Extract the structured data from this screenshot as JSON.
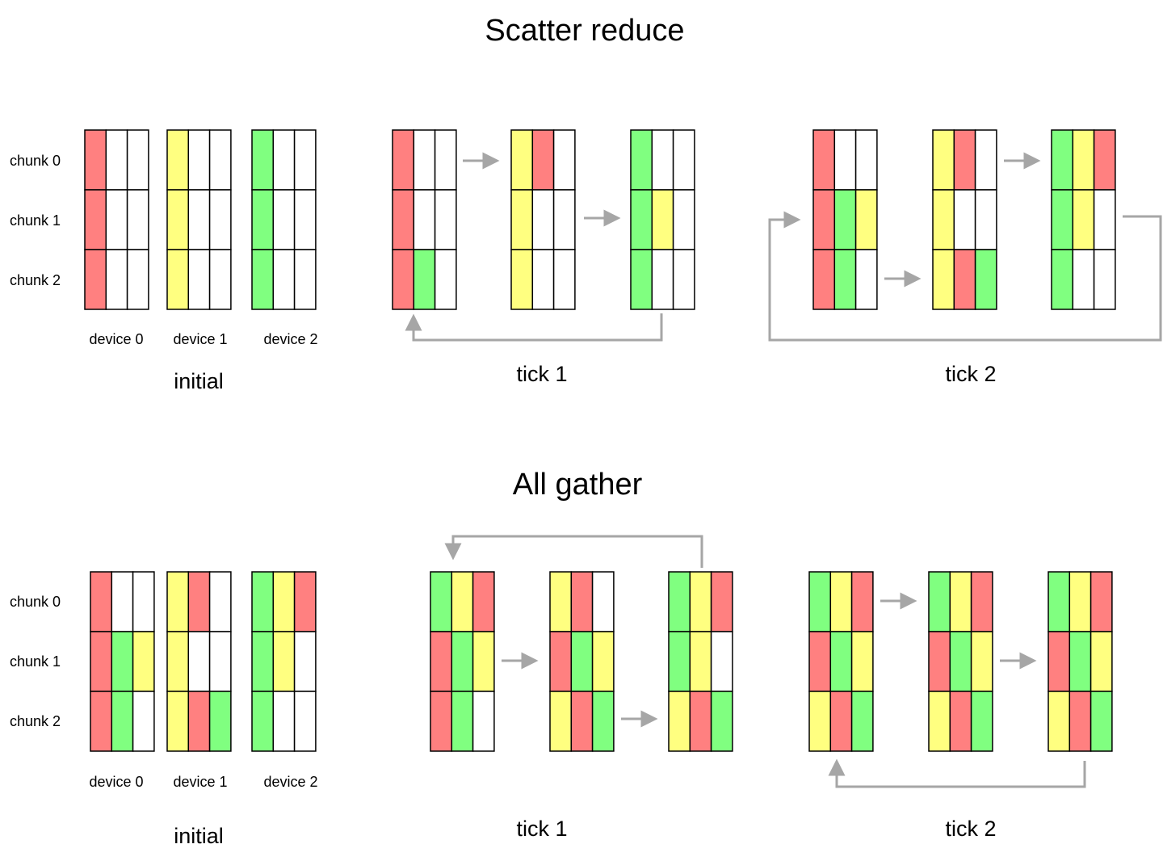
{
  "colors": {
    "R": "#ff8080",
    "Y": "#ffff80",
    "G": "#80ff80",
    "W": "#ffffff",
    "stroke": "#000000",
    "arrow": "#a6a6a6"
  },
  "chunk_labels": [
    "chunk 0",
    "chunk 1",
    "chunk 2"
  ],
  "sections": [
    {
      "title": "Scatter reduce",
      "device_labels": [
        "device 0",
        "device 1",
        "device 2"
      ],
      "stages": [
        {
          "caption": "initial",
          "devices": [
            [
              [
                "R",
                "W",
                "W"
              ],
              [
                "R",
                "W",
                "W"
              ],
              [
                "R",
                "W",
                "W"
              ]
            ],
            [
              [
                "Y",
                "W",
                "W"
              ],
              [
                "Y",
                "W",
                "W"
              ],
              [
                "Y",
                "W",
                "W"
              ]
            ],
            [
              [
                "G",
                "W",
                "W"
              ],
              [
                "G",
                "W",
                "W"
              ],
              [
                "G",
                "W",
                "W"
              ]
            ]
          ]
        },
        {
          "caption": "tick 1",
          "devices": [
            [
              [
                "R",
                "W",
                "W"
              ],
              [
                "R",
                "W",
                "W"
              ],
              [
                "R",
                "G",
                "W"
              ]
            ],
            [
              [
                "Y",
                "R",
                "W"
              ],
              [
                "Y",
                "W",
                "W"
              ],
              [
                "Y",
                "W",
                "W"
              ]
            ],
            [
              [
                "G",
                "W",
                "W"
              ],
              [
                "G",
                "Y",
                "W"
              ],
              [
                "G",
                "W",
                "W"
              ]
            ]
          ]
        },
        {
          "caption": "tick 2",
          "devices": [
            [
              [
                "R",
                "W",
                "W"
              ],
              [
                "R",
                "G",
                "Y"
              ],
              [
                "R",
                "G",
                "W"
              ]
            ],
            [
              [
                "Y",
                "R",
                "W"
              ],
              [
                "Y",
                "W",
                "W"
              ],
              [
                "Y",
                "R",
                "G"
              ]
            ],
            [
              [
                "G",
                "Y",
                "R"
              ],
              [
                "G",
                "Y",
                "W"
              ],
              [
                "G",
                "W",
                "W"
              ]
            ]
          ]
        }
      ]
    },
    {
      "title": "All gather",
      "device_labels": [
        "device 0",
        "device 1",
        "device 2"
      ],
      "stages": [
        {
          "caption": "initial",
          "devices": [
            [
              [
                "R",
                "W",
                "W"
              ],
              [
                "R",
                "G",
                "Y"
              ],
              [
                "R",
                "G",
                "W"
              ]
            ],
            [
              [
                "Y",
                "R",
                "W"
              ],
              [
                "Y",
                "W",
                "W"
              ],
              [
                "Y",
                "R",
                "G"
              ]
            ],
            [
              [
                "G",
                "Y",
                "R"
              ],
              [
                "G",
                "Y",
                "W"
              ],
              [
                "G",
                "W",
                "W"
              ]
            ]
          ]
        },
        {
          "caption": "tick 1",
          "devices": [
            [
              [
                "G",
                "Y",
                "R"
              ],
              [
                "R",
                "G",
                "Y"
              ],
              [
                "R",
                "G",
                "W"
              ]
            ],
            [
              [
                "Y",
                "R",
                "W"
              ],
              [
                "R",
                "G",
                "Y"
              ],
              [
                "Y",
                "R",
                "G"
              ]
            ],
            [
              [
                "G",
                "Y",
                "R"
              ],
              [
                "G",
                "Y",
                "W"
              ],
              [
                "Y",
                "R",
                "G"
              ]
            ]
          ]
        },
        {
          "caption": "tick 2",
          "devices": [
            [
              [
                "G",
                "Y",
                "R"
              ],
              [
                "R",
                "G",
                "Y"
              ],
              [
                "Y",
                "R",
                "G"
              ]
            ],
            [
              [
                "G",
                "Y",
                "R"
              ],
              [
                "R",
                "G",
                "Y"
              ],
              [
                "Y",
                "R",
                "G"
              ]
            ],
            [
              [
                "G",
                "Y",
                "R"
              ],
              [
                "R",
                "G",
                "Y"
              ],
              [
                "Y",
                "R",
                "G"
              ]
            ]
          ]
        }
      ]
    }
  ]
}
